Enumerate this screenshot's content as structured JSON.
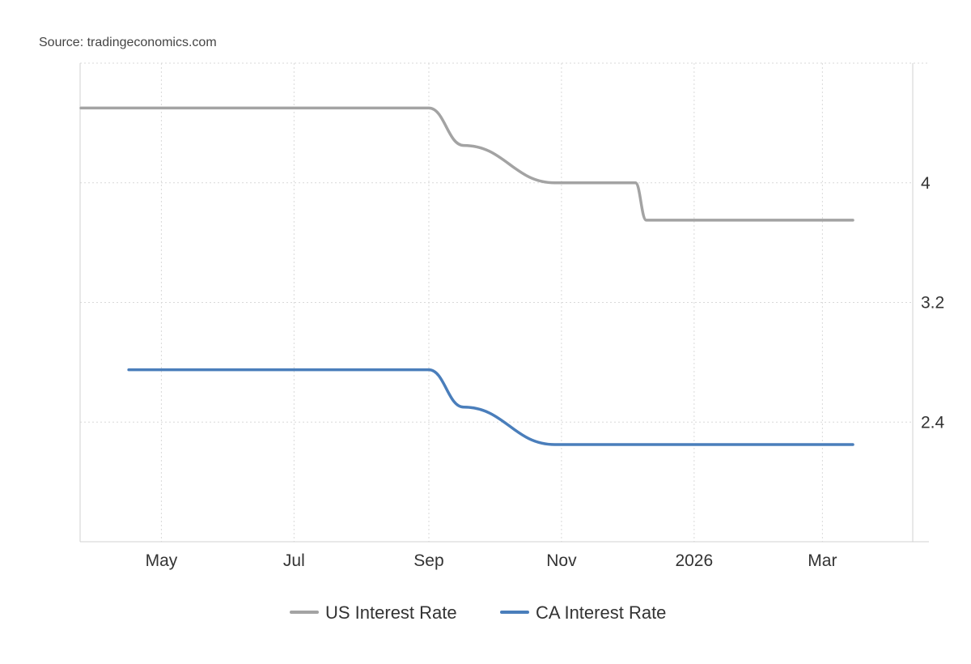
{
  "source": "Source: tradingeconomics.com",
  "colors": {
    "us": "#a3a3a3",
    "ca": "#4a7ebb",
    "grid": "#d9d9d9",
    "axis": "#d0d0d0"
  },
  "chart_data": {
    "type": "line",
    "title": "",
    "xlabel": "",
    "ylabel": "",
    "x_range": [
      "2025-03-25",
      "2026-03-31"
    ],
    "ylim": [
      1.6,
      4.8
    ],
    "y_ticks": [
      2.4,
      3.2,
      4
    ],
    "y_tick_labels": [
      "2.4",
      "3.2",
      "4"
    ],
    "x_ticks": [
      "2025-05-01",
      "2025-07-01",
      "2025-09-01",
      "2025-11-01",
      "2026-01-01",
      "2026-03-01"
    ],
    "x_tick_labels": [
      "May",
      "Jul",
      "Sep",
      "Nov",
      "2026",
      "Mar"
    ],
    "grid": true,
    "legend_position": "bottom-center",
    "series": [
      {
        "name": "US Interest Rate",
        "color_key": "us",
        "x": [
          "2025-03-25",
          "2025-09-01",
          "2025-09-17",
          "2025-10-29",
          "2025-12-05",
          "2025-12-10",
          "2026-03-15"
        ],
        "values": [
          4.5,
          4.5,
          4.25,
          4.0,
          4.0,
          3.75,
          3.75
        ]
      },
      {
        "name": "CA Interest Rate",
        "color_key": "ca",
        "x": [
          "2025-04-16",
          "2025-09-01",
          "2025-09-17",
          "2025-10-29",
          "2026-03-15"
        ],
        "values": [
          2.75,
          2.75,
          2.5,
          2.25,
          2.25
        ]
      }
    ]
  }
}
